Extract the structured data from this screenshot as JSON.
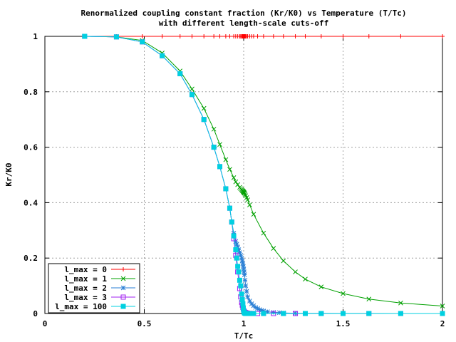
{
  "chart_data": {
    "type": "line",
    "title": "Renormalized coupling constant fraction (Kr/K0) vs Temperature (T/Tc)",
    "subtitle": "with different length-scale cuts-off",
    "xlabel": "T/Tc",
    "ylabel": "Kr/K0",
    "xlim": [
      0,
      2
    ],
    "ylim": [
      0,
      1
    ],
    "x_ticks": [
      "0",
      "0.5",
      "1",
      "1.5",
      "2"
    ],
    "y_ticks": [
      "0",
      "0.2",
      "0.4",
      "0.6",
      "0.8",
      "1"
    ],
    "grid": true,
    "legend_position": "bottom-left",
    "series": [
      {
        "name": "l_max = 0",
        "color": "#ff0000",
        "marker": "plus",
        "x": [
          0.2,
          0.36,
          0.49,
          0.59,
          0.68,
          0.74,
          0.8,
          0.85,
          0.88,
          0.91,
          0.93,
          0.95,
          0.96,
          0.97,
          0.98,
          0.985,
          0.99,
          0.993,
          0.996,
          0.998,
          1.0,
          1.002,
          1.004,
          1.007,
          1.01,
          1.015,
          1.02,
          1.03,
          1.04,
          1.05,
          1.07,
          1.1,
          1.15,
          1.2,
          1.26,
          1.31,
          1.39,
          1.5,
          1.63,
          1.79,
          2.0
        ],
        "y": [
          1,
          1,
          1,
          1,
          1,
          1,
          1,
          1,
          1,
          1,
          1,
          1,
          1,
          1,
          1,
          1,
          1,
          1,
          1,
          1,
          1,
          1,
          1,
          1,
          1,
          1,
          1,
          1,
          1,
          1,
          1,
          1,
          1,
          1,
          1,
          1,
          1,
          1,
          1,
          1,
          1
        ]
      },
      {
        "name": "l_max = 1",
        "color": "#00a000",
        "marker": "cross",
        "x": [
          0.2,
          0.36,
          0.49,
          0.59,
          0.68,
          0.74,
          0.8,
          0.85,
          0.88,
          0.91,
          0.93,
          0.95,
          0.96,
          0.97,
          0.98,
          0.985,
          0.99,
          0.993,
          0.996,
          0.998,
          1.0,
          1.002,
          1.004,
          1.007,
          1.01,
          1.015,
          1.02,
          1.03,
          1.05,
          1.1,
          1.15,
          1.2,
          1.26,
          1.31,
          1.39,
          1.5,
          1.63,
          1.79,
          2.0
        ],
        "y": [
          1,
          0.998,
          0.985,
          0.94,
          0.875,
          0.81,
          0.74,
          0.665,
          0.61,
          0.555,
          0.52,
          0.49,
          0.475,
          0.465,
          0.455,
          0.45,
          0.447,
          0.444,
          0.442,
          0.44,
          0.438,
          0.436,
          0.434,
          0.43,
          0.425,
          0.418,
          0.41,
          0.392,
          0.358,
          0.29,
          0.235,
          0.19,
          0.15,
          0.124,
          0.096,
          0.072,
          0.052,
          0.038,
          0.027
        ]
      },
      {
        "name": "l_max = 2",
        "color": "#2a7fd5",
        "marker": "star",
        "x": [
          0.2,
          0.36,
          0.49,
          0.59,
          0.68,
          0.74,
          0.8,
          0.85,
          0.88,
          0.91,
          0.93,
          0.94,
          0.95,
          0.96,
          0.965,
          0.97,
          0.975,
          0.98,
          0.985,
          0.99,
          0.993,
          0.996,
          0.998,
          1.0,
          1.002,
          1.004,
          1.007,
          1.01,
          1.015,
          1.02,
          1.03,
          1.04,
          1.05,
          1.06,
          1.07,
          1.08,
          1.09,
          1.1,
          1.12,
          1.15,
          1.18,
          1.2,
          1.26,
          1.31,
          1.39,
          1.5,
          1.63,
          1.79,
          2.0
        ],
        "y": [
          1,
          0.998,
          0.98,
          0.93,
          0.865,
          0.79,
          0.7,
          0.6,
          0.53,
          0.45,
          0.38,
          0.33,
          0.29,
          0.26,
          0.25,
          0.24,
          0.23,
          0.22,
          0.21,
          0.2,
          0.19,
          0.18,
          0.17,
          0.16,
          0.15,
          0.14,
          0.12,
          0.1,
          0.08,
          0.06,
          0.045,
          0.035,
          0.028,
          0.022,
          0.018,
          0.014,
          0.011,
          0.009,
          0.006,
          0.004,
          0.003,
          0.002,
          0.001,
          0.0007,
          0.0005,
          0.0003,
          0.0002,
          0.0001,
          0.0
        ]
      },
      {
        "name": "l_max = 3",
        "color": "#a020f0",
        "marker": "square-open",
        "x": [
          0.2,
          0.36,
          0.49,
          0.59,
          0.68,
          0.74,
          0.8,
          0.85,
          0.88,
          0.91,
          0.93,
          0.94,
          0.95,
          0.96,
          0.97,
          0.98,
          0.985,
          0.99,
          0.993,
          0.996,
          0.998,
          1.0,
          1.002,
          1.004,
          1.007,
          1.01,
          1.015,
          1.02,
          1.03,
          1.04,
          1.05,
          1.07,
          1.1,
          1.15,
          1.2,
          1.26,
          1.31,
          1.39,
          1.5,
          1.63,
          1.79,
          2.0
        ],
        "y": [
          1,
          0.998,
          0.98,
          0.93,
          0.865,
          0.79,
          0.7,
          0.6,
          0.53,
          0.45,
          0.38,
          0.33,
          0.27,
          0.21,
          0.15,
          0.09,
          0.06,
          0.04,
          0.03,
          0.022,
          0.016,
          0.011,
          0.008,
          0.006,
          0.004,
          0.003,
          0.002,
          0.001,
          0.0005,
          0.0003,
          0.0002,
          0.0001,
          0,
          0,
          0,
          0,
          0,
          0,
          0,
          0,
          0,
          0
        ]
      },
      {
        "name": "l_max = 100",
        "color": "#00d0e0",
        "marker": "square-filled",
        "x": [
          0.2,
          0.36,
          0.49,
          0.59,
          0.68,
          0.74,
          0.8,
          0.85,
          0.88,
          0.91,
          0.93,
          0.94,
          0.95,
          0.96,
          0.965,
          0.97,
          0.975,
          0.98,
          0.985,
          0.99,
          0.993,
          0.996,
          0.998,
          1.0,
          1.002,
          1.004,
          1.007,
          1.01,
          1.015,
          1.02,
          1.03,
          1.05,
          1.1,
          1.2,
          1.31,
          1.39,
          1.5,
          1.63,
          1.79,
          2.0
        ],
        "y": [
          1,
          0.998,
          0.98,
          0.93,
          0.865,
          0.79,
          0.7,
          0.6,
          0.53,
          0.45,
          0.38,
          0.33,
          0.28,
          0.23,
          0.2,
          0.17,
          0.15,
          0.12,
          0.1,
          0.07,
          0.05,
          0.035,
          0.02,
          0.01,
          0.005,
          0.002,
          0.001,
          0,
          0,
          0,
          0,
          0,
          0,
          0,
          0,
          0,
          0,
          0,
          0,
          0
        ]
      }
    ]
  }
}
